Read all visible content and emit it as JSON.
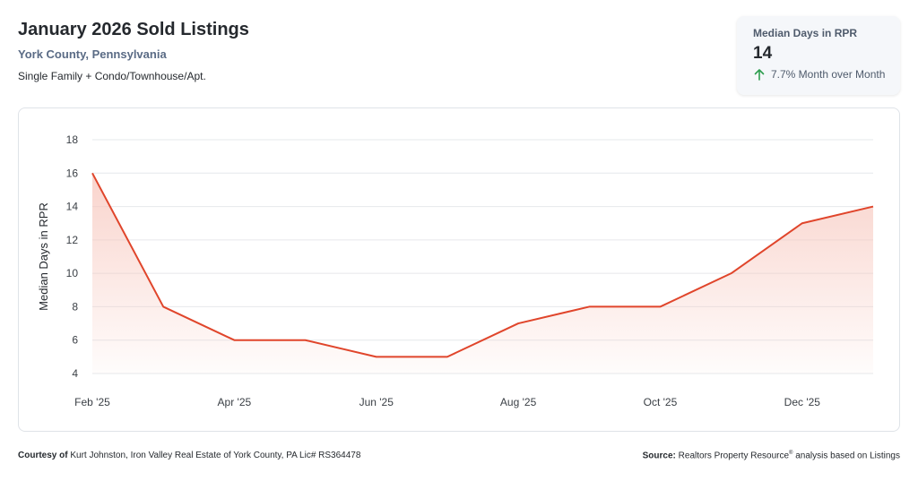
{
  "header": {
    "title": "January 2026 Sold Listings",
    "location": "York County, Pennsylvania",
    "property_types": "Single Family + Condo/Townhouse/Apt."
  },
  "kpi": {
    "label": "Median Days in RPR",
    "value": "14",
    "change": "7.7% Month over Month",
    "direction": "up",
    "arrow_color": "#2e9e4f",
    "arrow_icon": "arrow-up-icon"
  },
  "chart_data": {
    "type": "area",
    "title": "",
    "xlabel": "",
    "ylabel": "Median Days in RPR",
    "x": [
      "Feb '25",
      "Mar '25",
      "Apr '25",
      "May '25",
      "Jun '25",
      "Jul '25",
      "Aug '25",
      "Sep '25",
      "Oct '25",
      "Nov '25",
      "Dec '25",
      "Jan '26"
    ],
    "x_tick_labels": [
      "Feb '25",
      "Apr '25",
      "Jun '25",
      "Aug '25",
      "Oct '25",
      "Dec '25"
    ],
    "series": [
      {
        "values": [
          16,
          8,
          6,
          6,
          5,
          5,
          7,
          8,
          8,
          10,
          13,
          14
        ]
      }
    ],
    "yticks": [
      4,
      6,
      8,
      10,
      12,
      14,
      16,
      18
    ],
    "ylim": [
      4,
      18
    ],
    "grid": true,
    "legend": "none",
    "line_color": "#e0452b",
    "fill_color": "#f7c5bb"
  },
  "footer": {
    "courtesy_label": "Courtesy of",
    "courtesy_text": "Kurt Johnston, Iron Valley Real Estate of York County, PA Lic# RS364478",
    "source_label": "Source:",
    "source_text": "Realtors Property Resource",
    "source_mark": "®",
    "source_suffix": "analysis based on Listings"
  }
}
